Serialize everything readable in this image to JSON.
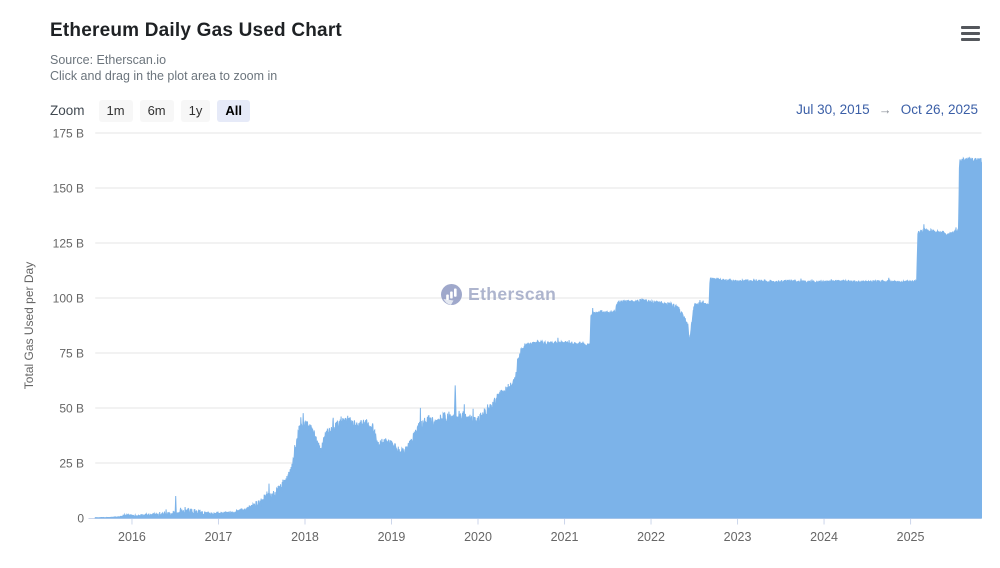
{
  "header": {
    "title": "Ethereum Daily Gas Used Chart",
    "source": "Source: Etherscan.io",
    "hint": "Click and drag in the plot area to zoom in"
  },
  "toolbar": {
    "zoom_label": "Zoom",
    "ranges": [
      {
        "label": "1m",
        "selected": false
      },
      {
        "label": "6m",
        "selected": false
      },
      {
        "label": "1y",
        "selected": false
      },
      {
        "label": "All",
        "selected": true
      }
    ],
    "date_from": "Jul 30, 2015",
    "date_arrow": "→",
    "date_to": "Oct 26, 2025"
  },
  "watermark": {
    "label": "Etherscan"
  },
  "colors": {
    "area_fill": "#7cb3e9",
    "area_line": "#7cb3e9",
    "gridline": "#e6e6e6",
    "axis_line": "#ccd6eb",
    "axis_text": "#666666",
    "date_accent": "#3b5fa7",
    "watermark": "#a0a9c6"
  },
  "chart_data": {
    "type": "area",
    "title": "Ethereum Daily Gas Used Chart",
    "xlabel": "",
    "ylabel": "Total Gas Used per Day",
    "unit": "billions of gas per day",
    "x_range": [
      2015.575,
      2025.82
    ],
    "ylim": [
      0,
      175
    ],
    "grid": "horizontal-only",
    "legend": "none",
    "x_ticks": [
      2016,
      2017,
      2018,
      2019,
      2020,
      2021,
      2022,
      2023,
      2024,
      2025
    ],
    "y_ticks": [
      {
        "v": 0,
        "label": "0"
      },
      {
        "v": 25,
        "label": "25 B"
      },
      {
        "v": 50,
        "label": "50 B"
      },
      {
        "v": 75,
        "label": "75 B"
      },
      {
        "v": 100,
        "label": "100 B"
      },
      {
        "v": 125,
        "label": "125 B"
      },
      {
        "v": 150,
        "label": "150 B"
      },
      {
        "v": 175,
        "label": "175 B"
      }
    ],
    "series": [
      {
        "name": "Total Gas Used per Day",
        "color": "#7cb3e9",
        "point_format": "[year_fraction, gas_used_billions, daily_noise_amplitude_billions]",
        "points": [
          [
            2015.575,
            0.12,
            0.08
          ],
          [
            2015.75,
            0.2,
            0.12
          ],
          [
            2015.86,
            0.5,
            0.35
          ],
          [
            2015.93,
            1.1,
            0.6
          ],
          [
            2016.0,
            0.9,
            0.5
          ],
          [
            2016.1,
            1.1,
            0.7
          ],
          [
            2016.2,
            1.2,
            0.8
          ],
          [
            2016.32,
            1.3,
            0.9
          ],
          [
            2016.42,
            1.6,
            1.1
          ],
          [
            2016.48,
            2.2,
            0.8
          ],
          [
            2016.5,
            2.2,
            0
          ],
          [
            2016.506,
            10.0,
            0
          ],
          [
            2016.512,
            2.2,
            0
          ],
          [
            2016.55,
            2.4,
            1.4
          ],
          [
            2016.65,
            2.6,
            1.7
          ],
          [
            2016.75,
            2.4,
            1.6
          ],
          [
            2016.85,
            1.8,
            0.9
          ],
          [
            2016.95,
            1.7,
            0.7
          ],
          [
            2017.05,
            1.9,
            0.7
          ],
          [
            2017.15,
            2.3,
            0.9
          ],
          [
            2017.25,
            3.0,
            1.1
          ],
          [
            2017.35,
            4.2,
            1.5
          ],
          [
            2017.42,
            5.5,
            2.2
          ],
          [
            2017.5,
            7.0,
            2.6
          ],
          [
            2017.56,
            9.5,
            3.0
          ],
          [
            2017.62,
            8.5,
            2.2
          ],
          [
            2017.7,
            13.0,
            2.6
          ],
          [
            2017.8,
            17.0,
            2.8
          ],
          [
            2017.86,
            24.0,
            3.0
          ],
          [
            2017.9,
            33.0,
            3.0
          ],
          [
            2017.94,
            41.0,
            2.0
          ],
          [
            2018.0,
            42.5,
            2.2
          ],
          [
            2018.08,
            40.0,
            2.4
          ],
          [
            2018.14,
            34.0,
            2.2
          ],
          [
            2018.18,
            30.0,
            1.6
          ],
          [
            2018.24,
            38.0,
            2.4
          ],
          [
            2018.32,
            41.0,
            2.4
          ],
          [
            2018.42,
            43.0,
            2.4
          ],
          [
            2018.52,
            43.5,
            2.4
          ],
          [
            2018.62,
            41.0,
            2.8
          ],
          [
            2018.7,
            42.5,
            2.4
          ],
          [
            2018.78,
            41.0,
            2.4
          ],
          [
            2018.85,
            33.5,
            2.0
          ],
          [
            2018.92,
            34.5,
            2.4
          ],
          [
            2019.0,
            33.0,
            2.4
          ],
          [
            2019.08,
            30.0,
            1.8
          ],
          [
            2019.16,
            31.0,
            2.0
          ],
          [
            2019.24,
            35.0,
            2.8
          ],
          [
            2019.32,
            41.0,
            3.2
          ],
          [
            2019.42,
            44.0,
            3.4
          ],
          [
            2019.52,
            42.0,
            3.8
          ],
          [
            2019.6,
            45.0,
            3.0
          ],
          [
            2019.68,
            46.0,
            2.0
          ],
          [
            2019.726,
            45.0,
            0
          ],
          [
            2019.737,
            61.0,
            0
          ],
          [
            2019.748,
            44.0,
            2.6
          ],
          [
            2019.82,
            46.0,
            2.8
          ],
          [
            2019.9,
            45.0,
            2.4
          ],
          [
            2019.97,
            44.0,
            2.4
          ],
          [
            2020.05,
            46.0,
            2.4
          ],
          [
            2020.13,
            49.0,
            2.8
          ],
          [
            2020.21,
            53.0,
            3.2
          ],
          [
            2020.29,
            56.0,
            3.2
          ],
          [
            2020.37,
            59.0,
            2.6
          ],
          [
            2020.43,
            62.0,
            1.8
          ],
          [
            2020.46,
            70.0,
            1.2
          ],
          [
            2020.5,
            76.5,
            1.2
          ],
          [
            2020.56,
            78.5,
            1.0
          ],
          [
            2020.7,
            79.5,
            1.0
          ],
          [
            2020.85,
            79.0,
            1.0
          ],
          [
            2021.0,
            79.5,
            1.0
          ],
          [
            2021.12,
            79.0,
            1.0
          ],
          [
            2021.22,
            78.5,
            0.9
          ],
          [
            2021.295,
            79.0,
            0.4
          ],
          [
            2021.305,
            92.0,
            1.0
          ],
          [
            2021.4,
            93.5,
            1.1
          ],
          [
            2021.5,
            93.0,
            1.1
          ],
          [
            2021.59,
            93.5,
            0.5
          ],
          [
            2021.6,
            97.5,
            1.0
          ],
          [
            2021.7,
            98.5,
            1.0
          ],
          [
            2021.8,
            98.0,
            1.0
          ],
          [
            2021.9,
            98.5,
            1.0
          ],
          [
            2022.0,
            98.0,
            1.0
          ],
          [
            2022.1,
            97.5,
            1.1
          ],
          [
            2022.2,
            97.0,
            1.2
          ],
          [
            2022.3,
            95.5,
            1.4
          ],
          [
            2022.38,
            91.0,
            1.4
          ],
          [
            2022.425,
            87.0,
            1.0
          ],
          [
            2022.445,
            80.0,
            0.6
          ],
          [
            2022.465,
            87.0,
            1.0
          ],
          [
            2022.5,
            96.5,
            1.0
          ],
          [
            2022.58,
            97.5,
            1.0
          ],
          [
            2022.67,
            96.5,
            0.5
          ],
          [
            2022.682,
            108.5,
            0.8
          ],
          [
            2022.8,
            108.0,
            0.8
          ],
          [
            2022.95,
            107.5,
            0.7
          ],
          [
            2023.15,
            107.5,
            0.7
          ],
          [
            2023.4,
            107.0,
            0.7
          ],
          [
            2023.65,
            107.5,
            0.7
          ],
          [
            2023.9,
            107.0,
            0.7
          ],
          [
            2024.15,
            107.5,
            0.7
          ],
          [
            2024.4,
            107.0,
            0.7
          ],
          [
            2024.65,
            107.5,
            0.7
          ],
          [
            2024.9,
            107.0,
            0.7
          ],
          [
            2025.07,
            107.5,
            0.5
          ],
          [
            2025.085,
            129.5,
            1.1
          ],
          [
            2025.18,
            130.5,
            1.1
          ],
          [
            2025.3,
            130.0,
            1.0
          ],
          [
            2025.42,
            128.5,
            1.0
          ],
          [
            2025.5,
            129.5,
            1.0
          ],
          [
            2025.555,
            130.0,
            0.4
          ],
          [
            2025.565,
            162.0,
            1.1
          ],
          [
            2025.65,
            163.0,
            1.1
          ],
          [
            2025.74,
            162.5,
            1.1
          ],
          [
            2025.82,
            162.5,
            0.5
          ]
        ]
      }
    ]
  }
}
